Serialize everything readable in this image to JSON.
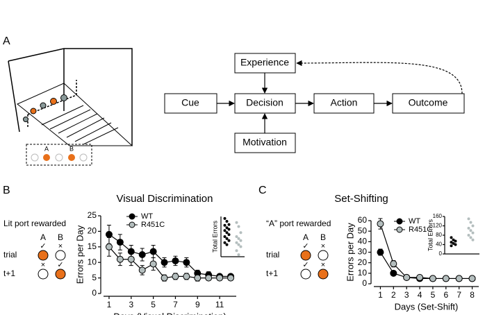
{
  "panel_a": {
    "label": "A",
    "port_labels": [
      "A",
      "B"
    ],
    "nodes": [
      "Experience",
      "Cue",
      "Decision",
      "Action",
      "Outcome",
      "Motivation"
    ]
  },
  "port_legends": [
    {
      "title": "Lit port rewarded",
      "columns": [
        "A",
        "B"
      ],
      "rows": [
        {
          "label": "trial",
          "marks": [
            "✓",
            "×"
          ],
          "lit": [
            true,
            false
          ]
        },
        {
          "label": "t+1",
          "marks": [
            "×",
            "✓"
          ],
          "lit": [
            false,
            true
          ]
        }
      ]
    },
    {
      "title": "“A” port rewarded",
      "columns": [
        "A",
        "B"
      ],
      "rows": [
        {
          "label": "trial",
          "marks": [
            "✓",
            "×"
          ],
          "lit": [
            true,
            false
          ]
        },
        {
          "label": "t+1",
          "marks": [
            "✓",
            "×"
          ],
          "lit": [
            false,
            true
          ]
        }
      ]
    }
  ],
  "chart_data": [
    {
      "type": "line",
      "label": "B",
      "title": "Visual Discrimination",
      "y_label": "Errors per Day",
      "x_label": "Days (Visual Discrimination)",
      "x": [
        1,
        2,
        3,
        4,
        5,
        6,
        7,
        8,
        9,
        10,
        11,
        12
      ],
      "xlim": [
        0.5,
        12.5
      ],
      "xticks": [
        1,
        3,
        5,
        7,
        9,
        11
      ],
      "ylim": [
        0,
        25
      ],
      "yticks": [
        0,
        5,
        10,
        15,
        20,
        25
      ],
      "series": [
        {
          "name": "WT",
          "color": "#000000",
          "values": [
            19,
            16.5,
            13.5,
            12.5,
            13.5,
            10,
            10.5,
            10,
            6.5,
            6,
            5.5,
            5.5
          ],
          "errors": [
            3,
            2.5,
            2,
            2,
            2,
            1.5,
            1.5,
            1.5,
            1,
            1,
            0.5,
            0.5
          ]
        },
        {
          "name": "R451C",
          "color": "#b4bebe",
          "values": [
            15,
            11,
            11,
            7.5,
            9.5,
            5,
            5.5,
            5.5,
            5,
            5,
            5,
            5
          ],
          "errors": [
            3,
            2,
            2,
            1.5,
            2,
            1,
            1,
            1,
            1,
            0.5,
            0.5,
            0.5
          ]
        }
      ],
      "inset": {
        "type": "scatter",
        "y_label": "Total Errors",
        "ylim": [
          0,
          1
        ],
        "series": [
          {
            "color": "#000000",
            "values": [
              0.95,
              0.88,
              0.8,
              0.78,
              0.72,
              0.68,
              0.65,
              0.6,
              0.55,
              0.5,
              0.45,
              0.4,
              0.35,
              0.3
            ]
          },
          {
            "color": "#b4bebe",
            "values": [
              0.85,
              0.75,
              0.6,
              0.5,
              0.45,
              0.4,
              0.35,
              0.3,
              0.25,
              0.15,
              0.05
            ]
          }
        ]
      }
    },
    {
      "type": "line",
      "label": "C",
      "title": "Set-Shifting",
      "y_label": "Errors per Day",
      "x_label": "Days (Set-Shift)",
      "x": [
        1,
        2,
        3,
        4,
        5,
        6,
        7,
        8
      ],
      "xlim": [
        0.5,
        8.5
      ],
      "xticks": [
        1,
        2,
        3,
        4,
        5,
        6,
        7,
        8
      ],
      "ylim": [
        0,
        60
      ],
      "yticks": [
        0,
        10,
        20,
        30,
        40,
        50,
        60
      ],
      "series": [
        {
          "name": "WT",
          "color": "#000000",
          "values": [
            30,
            10,
            6,
            5,
            5,
            5,
            5,
            5
          ],
          "errors": [
            3,
            1.5,
            1,
            1,
            1,
            1,
            1,
            1
          ]
        },
        {
          "name": "R451C",
          "color": "#b4bebe",
          "values": [
            57,
            19,
            6,
            6,
            5,
            5,
            5,
            5
          ],
          "errors": [
            5,
            3,
            1,
            1,
            1,
            1,
            1,
            1
          ]
        }
      ],
      "inset": {
        "type": "scatter",
        "y_label": "Total Errors",
        "ylim": [
          0,
          160
        ],
        "yticks": [
          0,
          40,
          80,
          120,
          160
        ],
        "series": [
          {
            "color": "#000000",
            "values": [
              70,
              60,
              55,
              50,
              45,
              40,
              35
            ]
          },
          {
            "color": "#b4bebe",
            "values": [
              150,
              135,
              120,
              110,
              100,
              90,
              80,
              70,
              60
            ]
          }
        ]
      }
    }
  ]
}
